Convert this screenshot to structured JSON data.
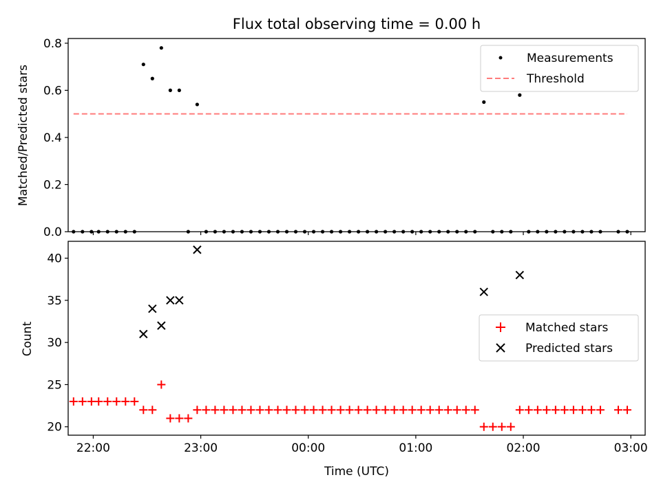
{
  "figure": {
    "title": "Flux total observing time = 0.00 h"
  },
  "chart_data": [
    {
      "type": "scatter",
      "ylabel": "Matched/Predicted stars",
      "xlabel": "",
      "xlim": [
        "21:46",
        "03:08"
      ],
      "ylim": [
        0,
        0.82
      ],
      "yticks": [
        0.0,
        0.2,
        0.4,
        0.6,
        0.8
      ],
      "ytick_labels": [
        "0.0",
        "0.2",
        "0.4",
        "0.6",
        "0.8"
      ],
      "legend_position": "upper right",
      "series": [
        {
          "name": "Measurements",
          "kind": "scatter",
          "marker": "dot",
          "color": "#000000",
          "points": [
            [
              "21:49",
              0
            ],
            [
              "21:54",
              0
            ],
            [
              "21:59",
              0
            ],
            [
              "22:03",
              0
            ],
            [
              "22:08",
              0
            ],
            [
              "22:13",
              0
            ],
            [
              "22:18",
              0
            ],
            [
              "22:23",
              0
            ],
            [
              "22:28",
              0.71
            ],
            [
              "22:33",
              0.65
            ],
            [
              "22:38",
              0.78
            ],
            [
              "22:43",
              0.6
            ],
            [
              "22:48",
              0.6
            ],
            [
              "22:53",
              0
            ],
            [
              "22:58",
              0.54
            ],
            [
              "23:03",
              0
            ],
            [
              "23:08",
              0
            ],
            [
              "23:13",
              0
            ],
            [
              "23:18",
              0
            ],
            [
              "23:23",
              0
            ],
            [
              "23:28",
              0
            ],
            [
              "23:33",
              0
            ],
            [
              "23:38",
              0
            ],
            [
              "23:43",
              0
            ],
            [
              "23:48",
              0
            ],
            [
              "23:53",
              0
            ],
            [
              "23:58",
              0
            ],
            [
              "00:03",
              0
            ],
            [
              "00:08",
              0
            ],
            [
              "00:13",
              0
            ],
            [
              "00:18",
              0
            ],
            [
              "00:23",
              0
            ],
            [
              "00:28",
              0
            ],
            [
              "00:33",
              0
            ],
            [
              "00:38",
              0
            ],
            [
              "00:43",
              0
            ],
            [
              "00:48",
              0
            ],
            [
              "00:53",
              0
            ],
            [
              "00:58",
              0
            ],
            [
              "01:03",
              0
            ],
            [
              "01:08",
              0
            ],
            [
              "01:13",
              0
            ],
            [
              "01:18",
              0
            ],
            [
              "01:23",
              0
            ],
            [
              "01:28",
              0
            ],
            [
              "01:33",
              0
            ],
            [
              "01:38",
              0.55
            ],
            [
              "01:43",
              0
            ],
            [
              "01:48",
              0
            ],
            [
              "01:53",
              0
            ],
            [
              "01:58",
              0.58
            ],
            [
              "02:03",
              0
            ],
            [
              "02:08",
              0
            ],
            [
              "02:13",
              0
            ],
            [
              "02:18",
              0
            ],
            [
              "02:23",
              0
            ],
            [
              "02:28",
              0
            ],
            [
              "02:33",
              0
            ],
            [
              "02:38",
              0
            ],
            [
              "02:43",
              0
            ],
            [
              "02:53",
              0
            ],
            [
              "02:58",
              0
            ]
          ]
        },
        {
          "name": "Threshold",
          "kind": "line",
          "style": "dashed",
          "color": "#ff7b7b",
          "points": [
            [
              "21:49",
              0.5
            ],
            [
              "02:58",
              0.5
            ]
          ]
        }
      ]
    },
    {
      "type": "scatter",
      "ylabel": "Count",
      "xlabel": "Time (UTC)",
      "xlim": [
        "21:46",
        "03:08"
      ],
      "ylim": [
        19,
        42
      ],
      "yticks": [
        20,
        25,
        30,
        35,
        40
      ],
      "ytick_labels": [
        "20",
        "25",
        "30",
        "35",
        "40"
      ],
      "xticks": [
        "22:00",
        "23:00",
        "00:00",
        "01:00",
        "02:00",
        "03:00"
      ],
      "xtick_labels": [
        "22:00",
        "23:00",
        "00:00",
        "01:00",
        "02:00",
        "03:00"
      ],
      "legend_position": "center right",
      "series": [
        {
          "name": "Matched stars",
          "kind": "scatter",
          "marker": "plus",
          "color": "#ff0000",
          "points": [
            [
              "21:49",
              23
            ],
            [
              "21:54",
              23
            ],
            [
              "21:59",
              23
            ],
            [
              "22:03",
              23
            ],
            [
              "22:08",
              23
            ],
            [
              "22:13",
              23
            ],
            [
              "22:18",
              23
            ],
            [
              "22:23",
              23
            ],
            [
              "22:28",
              22
            ],
            [
              "22:33",
              22
            ],
            [
              "22:38",
              25
            ],
            [
              "22:43",
              21
            ],
            [
              "22:48",
              21
            ],
            [
              "22:53",
              21
            ],
            [
              "22:58",
              22
            ],
            [
              "23:03",
              22
            ],
            [
              "23:08",
              22
            ],
            [
              "23:13",
              22
            ],
            [
              "23:18",
              22
            ],
            [
              "23:23",
              22
            ],
            [
              "23:28",
              22
            ],
            [
              "23:33",
              22
            ],
            [
              "23:38",
              22
            ],
            [
              "23:43",
              22
            ],
            [
              "23:48",
              22
            ],
            [
              "23:53",
              22
            ],
            [
              "23:58",
              22
            ],
            [
              "00:03",
              22
            ],
            [
              "00:08",
              22
            ],
            [
              "00:13",
              22
            ],
            [
              "00:18",
              22
            ],
            [
              "00:23",
              22
            ],
            [
              "00:28",
              22
            ],
            [
              "00:33",
              22
            ],
            [
              "00:38",
              22
            ],
            [
              "00:43",
              22
            ],
            [
              "00:48",
              22
            ],
            [
              "00:53",
              22
            ],
            [
              "00:58",
              22
            ],
            [
              "01:03",
              22
            ],
            [
              "01:08",
              22
            ],
            [
              "01:13",
              22
            ],
            [
              "01:18",
              22
            ],
            [
              "01:23",
              22
            ],
            [
              "01:28",
              22
            ],
            [
              "01:33",
              22
            ],
            [
              "01:38",
              20
            ],
            [
              "01:43",
              20
            ],
            [
              "01:48",
              20
            ],
            [
              "01:53",
              20
            ],
            [
              "01:58",
              22
            ],
            [
              "02:03",
              22
            ],
            [
              "02:08",
              22
            ],
            [
              "02:13",
              22
            ],
            [
              "02:18",
              22
            ],
            [
              "02:23",
              22
            ],
            [
              "02:28",
              22
            ],
            [
              "02:33",
              22
            ],
            [
              "02:38",
              22
            ],
            [
              "02:43",
              22
            ],
            [
              "02:53",
              22
            ],
            [
              "02:58",
              22
            ]
          ]
        },
        {
          "name": "Predicted stars",
          "kind": "scatter",
          "marker": "x",
          "color": "#000000",
          "points": [
            [
              "22:28",
              31
            ],
            [
              "22:33",
              34
            ],
            [
              "22:38",
              32
            ],
            [
              "22:43",
              35
            ],
            [
              "22:48",
              35
            ],
            [
              "22:58",
              41
            ],
            [
              "01:38",
              36
            ],
            [
              "01:58",
              38
            ]
          ]
        }
      ]
    }
  ]
}
